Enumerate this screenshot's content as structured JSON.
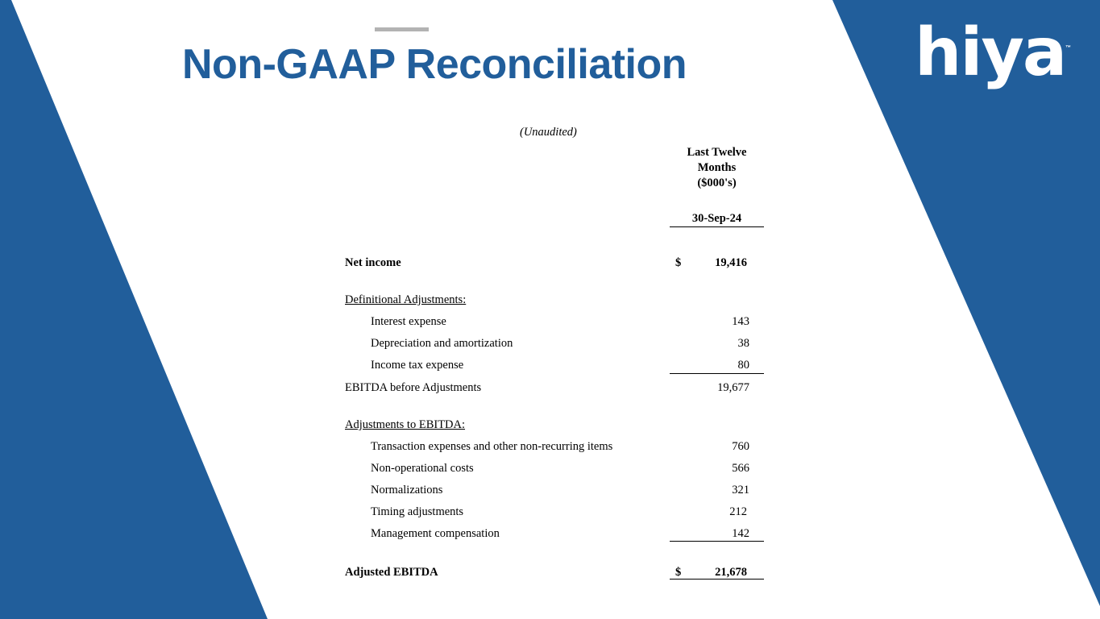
{
  "title": "Non-GAAP Reconciliation",
  "logo": {
    "text": "hiya",
    "tm": "™"
  },
  "colors": {
    "brand_blue": "#215e9b",
    "accent_gray": "#b3b3b3"
  },
  "table": {
    "unaudited": "(Unaudited)",
    "col_header": [
      "Last Twelve",
      "Months",
      "($000's)"
    ],
    "date": "30-Sep-24",
    "net_income": {
      "label": "Net income",
      "currency": "$",
      "value": "19,416"
    },
    "definitional_header": "Definitional Adjustments:",
    "definitional": [
      {
        "label": "Interest expense",
        "value": "143"
      },
      {
        "label": "Depreciation and amortization",
        "value": "38"
      },
      {
        "label": "Income tax expense",
        "value": "80"
      }
    ],
    "ebitda_before": {
      "label": "EBITDA before Adjustments",
      "value": "19,677"
    },
    "adjustments_header": "Adjustments to EBITDA:",
    "adjustments": [
      {
        "label": "Transaction expenses and other non-recurring items",
        "value": "760"
      },
      {
        "label": "Non-operational costs",
        "value": "566"
      },
      {
        "label": "Normalizations",
        "value": "321"
      },
      {
        "label": "Timing adjustments",
        "value": "212"
      },
      {
        "label": "Management compensation",
        "value": "142"
      }
    ],
    "adjusted_ebitda": {
      "label": "Adjusted EBITDA",
      "currency": "$",
      "value": "21,678"
    }
  }
}
